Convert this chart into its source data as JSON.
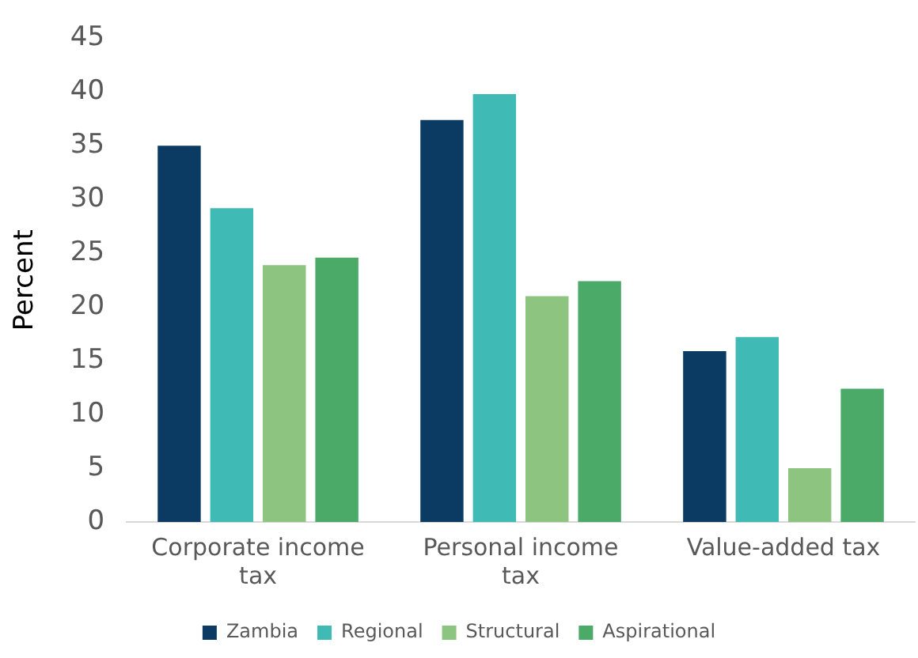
{
  "chart_data": {
    "type": "bar",
    "ylabel": "Percent",
    "categories": [
      "Corporate income tax",
      "Personal income tax",
      "Value-added tax"
    ],
    "series": [
      {
        "name": "Zambia",
        "color": "#0b3a62",
        "values": [
          35,
          37.4,
          15.9
        ]
      },
      {
        "name": "Regional",
        "color": "#3fbab5",
        "values": [
          29.2,
          39.8,
          17.2
        ]
      },
      {
        "name": "Structural",
        "color": "#8dc47f",
        "values": [
          23.9,
          21,
          5
        ]
      },
      {
        "name": "Aspirational",
        "color": "#4caa68",
        "values": [
          24.6,
          22.4,
          12.4
        ]
      }
    ],
    "ylim": [
      0,
      45
    ],
    "yticks": [
      0,
      5,
      10,
      15,
      20,
      25,
      30,
      35,
      40,
      45
    ],
    "grid": false,
    "legend": "bottom"
  }
}
